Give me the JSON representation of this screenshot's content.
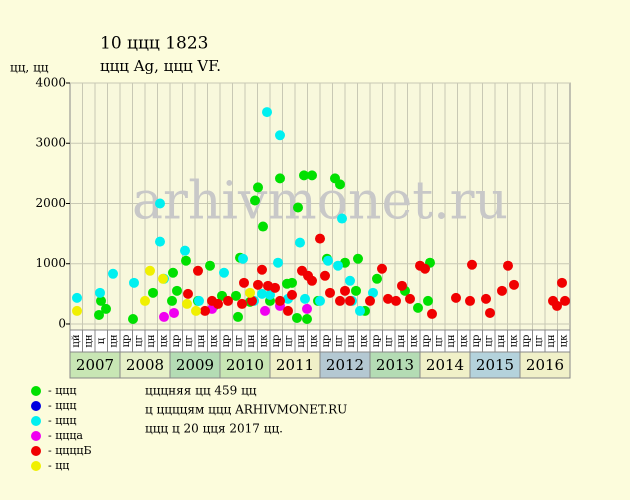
{
  "chart_data": {
    "type": "scatter",
    "title": "10 ццц 1823",
    "subtitle": "ццц Ag, ццц VF.",
    "y_label": "цц, цц",
    "watermark": "arhivmonet.ru",
    "notes": [
      "цццняя цц 459 цц",
      "ц ццццям ццц ARHIVMONET.RU",
      "ццц ц 20 цця 2017 цц."
    ],
    "xlim": [
      2007,
      2017
    ],
    "ylim": [
      -100,
      4000
    ],
    "yticks": [
      0,
      1000,
      2000,
      3000,
      4000
    ],
    "grid": true,
    "years": [
      2007,
      2008,
      2009,
      2010,
      2011,
      2012,
      2013,
      2014,
      2015,
      2016
    ],
    "year_colors": [
      "#c8e6b4",
      "#e6f0c8",
      "#b4dcb4",
      "#c8e6b4",
      "#f0f0c8",
      "#b4c8d2",
      "#b4dcb4",
      "#f0f0c8",
      "#b4d2dc",
      "#f0f0c8"
    ],
    "quarters": [
      "цй",
      "цн",
      "ц",
      "цн",
      "цр",
      "цг",
      "цн",
      "цк",
      "цр",
      "цг",
      "цн",
      "цк",
      "цр",
      "цг",
      "цн",
      "цк",
      "цр",
      "цг",
      "цн",
      "цк",
      "цр",
      "цг",
      "цн",
      "цк",
      "цр",
      "цг",
      "цн",
      "цк",
      "цр",
      "цг",
      "цн",
      "цк",
      "цр",
      "цг",
      "цн",
      "цк",
      "цр",
      "цг",
      "цн",
      "цк"
    ],
    "series": [
      {
        "name": "- ццц",
        "color": "#00e000",
        "x": [
          2007.58,
          2007.62,
          2007.72,
          2008.26,
          2008.66,
          2009.04,
          2009.06,
          2009.14,
          2009.32,
          2009.56,
          2009.8,
          2009.88,
          2010.04,
          2010.32,
          2010.36,
          2010.4,
          2010.6,
          2010.7,
          2010.76,
          2010.86,
          2011.0,
          2011.2,
          2011.34,
          2011.44,
          2011.54,
          2011.56,
          2011.68,
          2011.74,
          2011.84,
          2011.96,
          2012.14,
          2012.3,
          2012.4,
          2012.5,
          2012.72,
          2012.76,
          2012.9,
          2013.14,
          2013.7,
          2013.96,
          2014.16,
          2014.2
        ],
        "values": [
          150,
          383,
          250,
          83,
          517,
          383,
          850,
          550,
          1050,
          383,
          967,
          300,
          467,
          467,
          117,
          1100,
          367,
          2050,
          2267,
          1617,
          383,
          2417,
          667,
          683,
          100,
          1933,
          2467,
          83,
          2467,
          383,
          1083,
          2417,
          2317,
          1017,
          550,
          1083,
          217,
          750,
          550,
          267,
          383,
          1017
        ]
      },
      {
        "name": "- ццц",
        "color": "#0000e0",
        "x": [],
        "values": []
      },
      {
        "name": "- ццц",
        "color": "#00f0f0",
        "x": [
          2007.14,
          2007.6,
          2007.86,
          2008.28,
          2008.8,
          2008.8,
          2008.88,
          2009.3,
          2009.58,
          2010.08,
          2010.46,
          2010.68,
          2010.84,
          2010.94,
          2011.0,
          2011.16,
          2011.2,
          2011.36,
          2011.6,
          2011.7,
          2012.0,
          2012.16,
          2012.36,
          2012.44,
          2012.6,
          2012.64,
          2012.8,
          2013.06
        ],
        "values": [
          433,
          517,
          833,
          683,
          2000,
          1367,
          750,
          1217,
          383,
          850,
          1083,
          383,
          500,
          3517,
          483,
          1017,
          3133,
          417,
          1350,
          417,
          383,
          1050,
          967,
          1750,
          717,
          383,
          217,
          517
        ]
      },
      {
        "name": "- цццa",
        "color": "#f000f0",
        "x": [
          2008.88,
          2009.08,
          2009.84,
          2010.9,
          2011.2,
          2011.74
        ],
        "values": [
          117,
          183,
          250,
          217,
          300,
          250
        ]
      },
      {
        "name": "- ццццБ",
        "color": "#f00000",
        "x": [
          2009.36,
          2009.56,
          2009.7,
          2009.84,
          2009.96,
          2010.16,
          2010.44,
          2010.48,
          2010.64,
          2010.76,
          2010.84,
          2010.96,
          2011.1,
          2011.2,
          2011.36,
          2011.44,
          2011.64,
          2011.76,
          2011.84,
          2012.0,
          2012.1,
          2012.2,
          2012.4,
          2012.5,
          2012.6,
          2013.0,
          2013.24,
          2013.36,
          2013.52,
          2013.64,
          2013.8,
          2014.0,
          2014.1,
          2014.24,
          2014.72,
          2015.0,
          2015.04,
          2015.32,
          2015.4,
          2015.64,
          2015.76,
          2015.88,
          2016.66,
          2016.74,
          2016.84,
          2016.9
        ],
        "values": [
          500,
          883,
          217,
          383,
          333,
          383,
          333,
          683,
          383,
          650,
          900,
          633,
          600,
          383,
          217,
          483,
          883,
          800,
          717,
          1417,
          800,
          517,
          383,
          550,
          383,
          383,
          917,
          417,
          383,
          633,
          417,
          967,
          917,
          167,
          433,
          383,
          983,
          417,
          183,
          550,
          967,
          650,
          383,
          300,
          683,
          383
        ]
      },
      {
        "name": "- цц",
        "color": "#f0f000",
        "x": [
          2007.14,
          2008.5,
          2008.6,
          2008.86,
          2009.34,
          2009.52,
          2010.6
        ],
        "values": [
          217,
          383,
          883,
          750,
          333,
          217,
          517
        ]
      }
    ]
  }
}
